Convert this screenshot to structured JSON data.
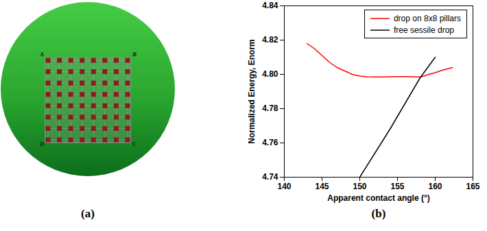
{
  "panel_a": {
    "label": "(a)",
    "corners": [
      "A",
      "B",
      "C",
      "D"
    ],
    "pillars": {
      "rows": 8,
      "columns": 8
    }
  },
  "chart_data": {
    "label": "(b)",
    "type": "line",
    "xlabel": "Apparent contact angle (°)",
    "ylabel": "Normalized Energy, Enorm",
    "xlim": [
      140,
      165
    ],
    "xticks": [
      140,
      145,
      150,
      155,
      160,
      165
    ],
    "ylim": [
      4.74,
      4.84
    ],
    "yticks": [
      4.74,
      4.76,
      4.78,
      {
        "value": 4.8,
        "label": "4.80"
      },
      4.82,
      4.84
    ],
    "legend": "upper right",
    "series": [
      {
        "name": "drop on 8x8 pillars",
        "color": "#ff0000",
        "x": [
          143,
          144,
          145,
          146,
          147,
          148,
          149,
          150,
          151,
          152,
          153,
          154,
          155,
          156,
          157,
          157.5,
          158,
          158.5,
          159,
          160,
          161,
          162.3
        ],
        "values": [
          4.818,
          4.815,
          4.811,
          4.807,
          4.804,
          4.802,
          4.8,
          4.799,
          4.7986,
          4.7985,
          4.7985,
          4.7986,
          4.7987,
          4.7987,
          4.7986,
          4.7985,
          4.7985,
          4.799,
          4.7998,
          4.801,
          4.8025,
          4.804
        ]
      },
      {
        "name": "free sessile drop",
        "color": "#000000",
        "x": [
          150,
          152,
          154,
          156,
          158,
          160
        ],
        "values": [
          4.74,
          4.754,
          4.768,
          4.783,
          4.798,
          4.81
        ]
      }
    ]
  }
}
